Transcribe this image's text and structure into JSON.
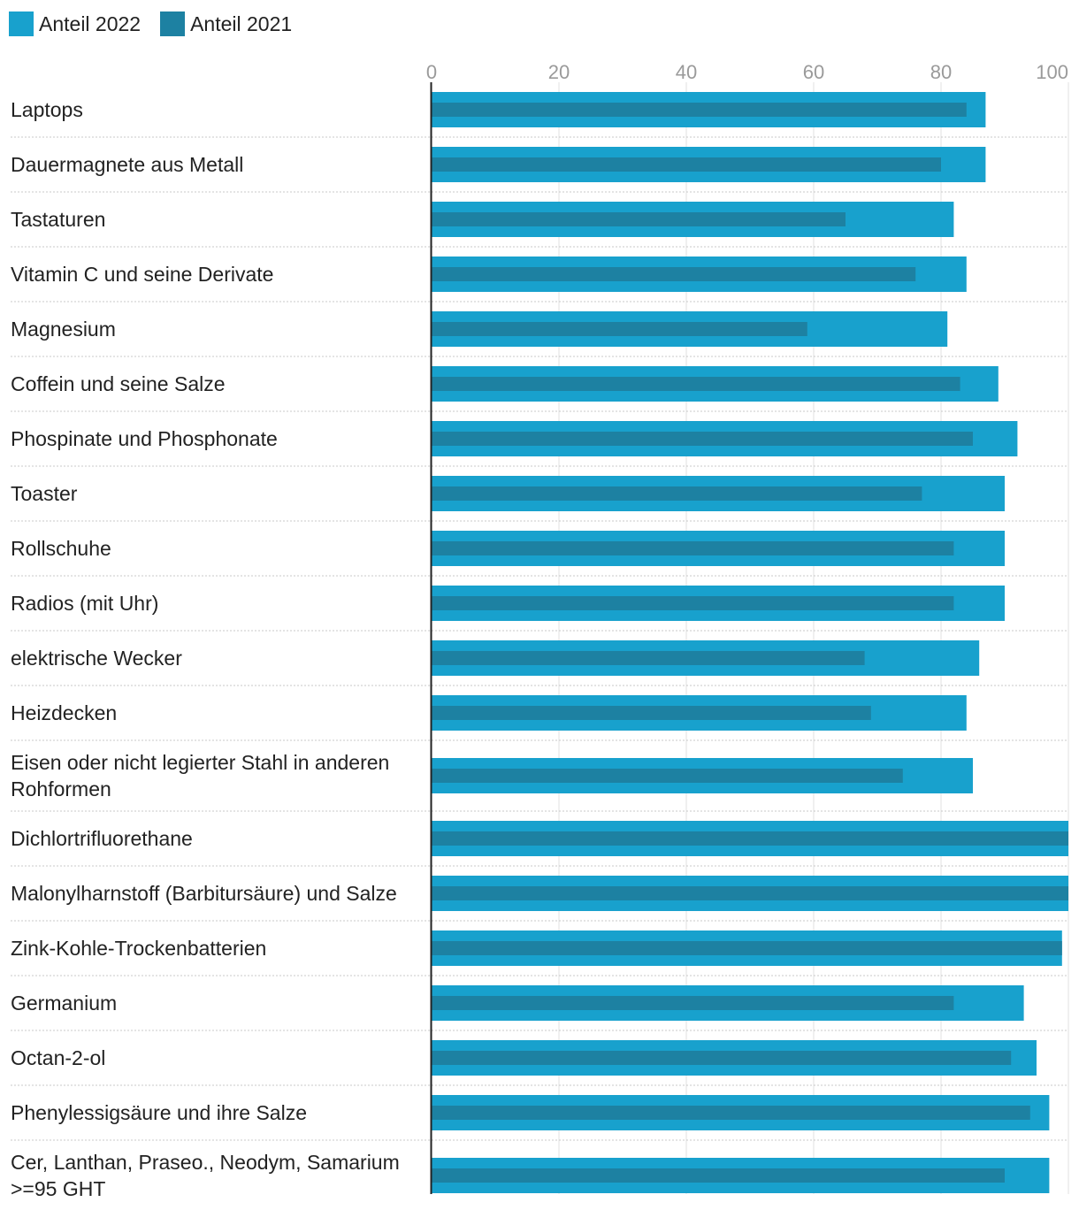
{
  "colors": {
    "series_2022": "#18a1cd",
    "series_2021": "#1d81a2",
    "grid": "#e2e2e2",
    "axis": "#222222",
    "separator": "#c8c8c8"
  },
  "legend": [
    {
      "label": "Anteil 2022",
      "color": "#18a1cd"
    },
    {
      "label": "Anteil 2021",
      "color": "#1d81a2"
    }
  ],
  "chart_data": {
    "type": "bar",
    "orientation": "horizontal",
    "xlim": [
      0,
      100
    ],
    "ticks": [
      0,
      20,
      40,
      60,
      80,
      100
    ],
    "categories": [
      [
        "Laptops"
      ],
      [
        "Dauermagnete aus Metall"
      ],
      [
        "Tastaturen"
      ],
      [
        "Vitamin C und seine Derivate"
      ],
      [
        "Magnesium"
      ],
      [
        "Coffein und seine Salze"
      ],
      [
        "Phospinate und Phosphonate"
      ],
      [
        "Toaster"
      ],
      [
        "Rollschuhe"
      ],
      [
        "Radios (mit Uhr)"
      ],
      [
        "elektrische Wecker"
      ],
      [
        "Heizdecken"
      ],
      [
        "Eisen oder nicht legierter Stahl in anderen",
        "Rohformen"
      ],
      [
        "Dichlortrifluorethane"
      ],
      [
        "Malonylharnstoff (Barbitursäure) und Salze"
      ],
      [
        "Zink-Kohle-Trockenbatterien"
      ],
      [
        "Germanium"
      ],
      [
        "Octan-2-ol"
      ],
      [
        "Phenylessigsäure und ihre Salze"
      ],
      [
        "Cer, Lanthan, Praseo., Neodym, Samarium",
        ">=95 GHT"
      ]
    ],
    "series": [
      {
        "name": "Anteil 2022",
        "values": [
          87,
          87,
          82,
          84,
          81,
          89,
          92,
          90,
          90,
          90,
          86,
          84,
          85,
          100,
          100,
          99,
          93,
          95,
          97,
          97
        ]
      },
      {
        "name": "Anteil 2021",
        "values": [
          84,
          80,
          65,
          76,
          59,
          83,
          85,
          77,
          82,
          82,
          68,
          69,
          74,
          100,
          100,
          99,
          82,
          91,
          94,
          90
        ]
      }
    ]
  }
}
